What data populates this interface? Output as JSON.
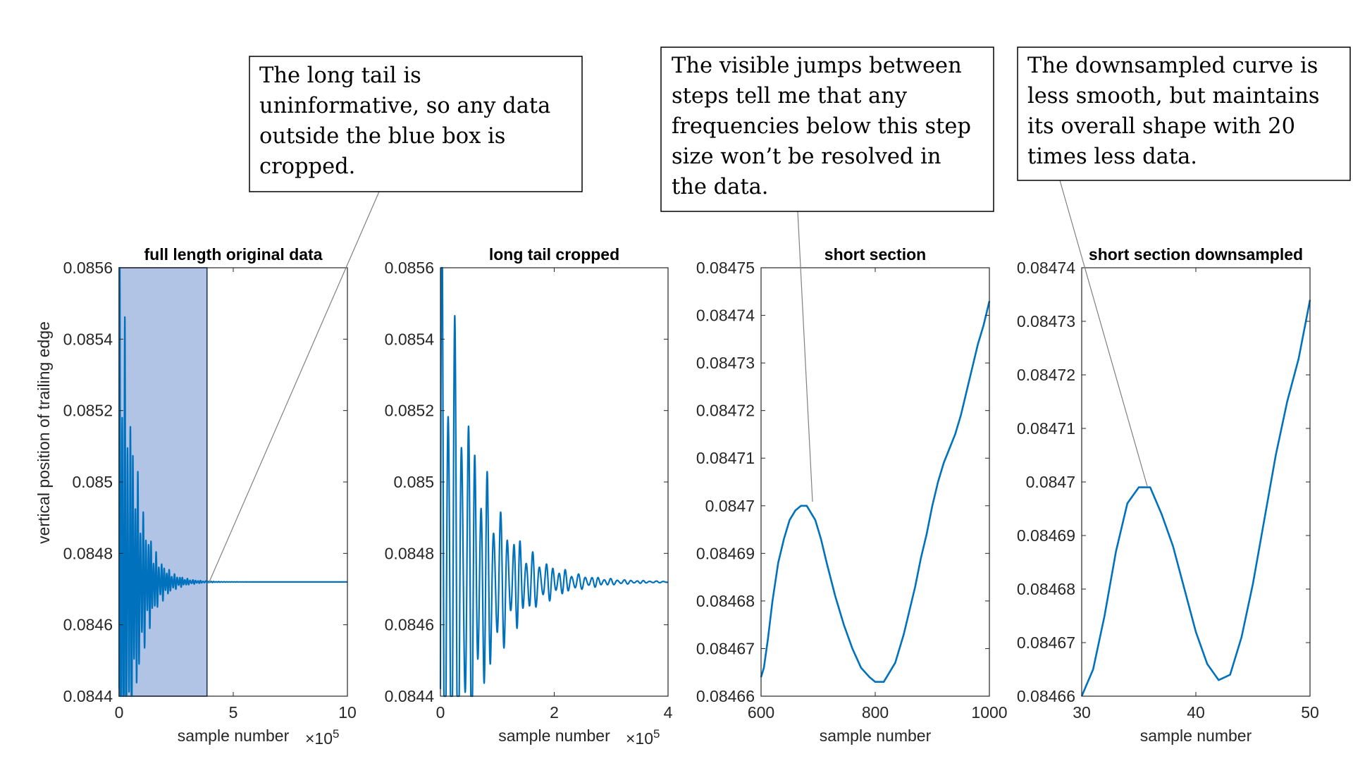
{
  "chart_data": [
    {
      "type": "line",
      "title": "full length original data",
      "xlabel": "sample number",
      "ylabel": "vertical position of trailing edge",
      "x_exponent": "×10^5",
      "xlim": [
        0,
        10
      ],
      "ylim": [
        0.0844,
        0.0856
      ],
      "xticks": [
        0,
        5,
        10
      ],
      "yticks": [
        0.0844,
        0.0846,
        0.0848,
        0.085,
        0.0852,
        0.0854,
        0.0856
      ],
      "xtick_labels": [
        "0",
        "5",
        "10"
      ],
      "ytick_labels": [
        "0.0844",
        "0.0846",
        "0.0848",
        "0.085",
        "0.0852",
        "0.0854",
        "0.0856"
      ],
      "highlight_box": {
        "x": [
          0,
          3.85
        ],
        "y": [
          0.0844,
          0.0856
        ],
        "color": "#4472C4"
      },
      "series": [
        {
          "kind": "damped",
          "color": "#0072BD",
          "x_start": 0,
          "x_end": 10,
          "settle": 0.08472,
          "amp": 0.00115,
          "decay": 1.6,
          "freq": 55,
          "y_start": 0.08442
        }
      ]
    },
    {
      "type": "line",
      "title": "long tail cropped",
      "xlabel": "sample number",
      "x_exponent": "×10^5",
      "xlim": [
        0,
        4
      ],
      "ylim": [
        0.0844,
        0.0856
      ],
      "xticks": [
        0,
        2,
        4
      ],
      "yticks": [
        0.0844,
        0.0846,
        0.0848,
        0.085,
        0.0852,
        0.0854,
        0.0856
      ],
      "xtick_labels": [
        "0",
        "2",
        "4"
      ],
      "ytick_labels": [
        "0.0844",
        "0.0846",
        "0.0848",
        "0.085",
        "0.0852",
        "0.0854",
        "0.0856"
      ],
      "series": [
        {
          "kind": "damped",
          "color": "#0072BD",
          "x_start": 0,
          "x_end": 4,
          "settle": 0.08472,
          "amp": 0.00115,
          "decay": 1.6,
          "freq": 55,
          "y_start": 0.08442
        }
      ]
    },
    {
      "type": "line",
      "title": "short section",
      "xlabel": "sample number",
      "xlim": [
        600,
        1000
      ],
      "ylim": [
        0.08466,
        0.08475
      ],
      "xticks": [
        600,
        800,
        1000
      ],
      "yticks": [
        0.08466,
        0.08467,
        0.08468,
        0.08469,
        0.0847,
        0.08471,
        0.08472,
        0.08473,
        0.08474,
        0.08475
      ],
      "xtick_labels": [
        "600",
        "800",
        "1000"
      ],
      "ytick_labels": [
        "0.08466",
        "0.08467",
        "0.08468",
        "0.08469",
        "0.0847",
        "0.08471",
        "0.08472",
        "0.08473",
        "0.08474",
        "0.08475"
      ],
      "series": [
        {
          "kind": "points",
          "color": "#0072BD",
          "x": [
            600,
            605,
            612,
            620,
            630,
            640,
            650,
            660,
            670,
            680,
            690,
            695,
            700,
            705,
            715,
            730,
            745,
            760,
            775,
            790,
            800,
            810,
            815,
            820,
            825,
            830,
            835,
            840,
            850,
            860,
            870,
            880,
            890,
            900,
            910,
            920,
            930,
            940,
            950,
            960,
            970,
            980,
            990,
            1000
          ],
          "y": [
            0.084664,
            0.084666,
            0.084672,
            0.08468,
            0.084688,
            0.084693,
            0.084697,
            0.084699,
            0.0847,
            0.0847,
            0.084698,
            0.084697,
            0.084695,
            0.084693,
            0.084688,
            0.084681,
            0.084675,
            0.08467,
            0.084666,
            0.084664,
            0.084663,
            0.084663,
            0.084663,
            0.084664,
            0.084665,
            0.084666,
            0.084667,
            0.084669,
            0.084673,
            0.084678,
            0.084683,
            0.084689,
            0.084694,
            0.0847,
            0.084705,
            0.084709,
            0.084712,
            0.084715,
            0.084719,
            0.084724,
            0.084729,
            0.084734,
            0.084738,
            0.084743
          ]
        }
      ]
    },
    {
      "type": "line",
      "title": "short section downsampled",
      "xlabel": "sample number",
      "xlim": [
        30,
        50
      ],
      "ylim": [
        0.08466,
        0.08474
      ],
      "xticks": [
        30,
        40,
        50
      ],
      "yticks": [
        0.08466,
        0.08467,
        0.08468,
        0.08469,
        0.0847,
        0.08471,
        0.08472,
        0.08473,
        0.08474
      ],
      "xtick_labels": [
        "30",
        "40",
        "50"
      ],
      "ytick_labels": [
        "0.08466",
        "0.08467",
        "0.08468",
        "0.08469",
        "0.0847",
        "0.08471",
        "0.08472",
        "0.08473",
        "0.08474"
      ],
      "series": [
        {
          "kind": "points",
          "color": "#0072BD",
          "x": [
            30,
            31,
            32,
            33,
            34,
            35,
            36,
            37,
            38,
            39,
            40,
            41,
            42,
            43,
            44,
            45,
            46,
            47,
            48,
            49,
            50
          ],
          "y": [
            0.08466,
            0.084665,
            0.084675,
            0.084687,
            0.084696,
            0.084699,
            0.084699,
            0.084694,
            0.084688,
            0.08468,
            0.084672,
            0.084666,
            0.084663,
            0.084664,
            0.084671,
            0.084681,
            0.084693,
            0.084705,
            0.084715,
            0.084723,
            0.084734
          ]
        }
      ]
    }
  ],
  "annotations": [
    {
      "lines": [
        "The long tail is",
        "uninformative, so any data",
        "outside the blue box is",
        "cropped."
      ]
    },
    {
      "lines": [
        "The visible jumps between",
        "steps tell me that any",
        "frequencies below this step",
        "size won’t be resolved in",
        "the data."
      ]
    },
    {
      "lines": [
        "The downsampled curve is",
        "less smooth, but maintains",
        "its overall shape with 20",
        "times less data."
      ]
    }
  ]
}
